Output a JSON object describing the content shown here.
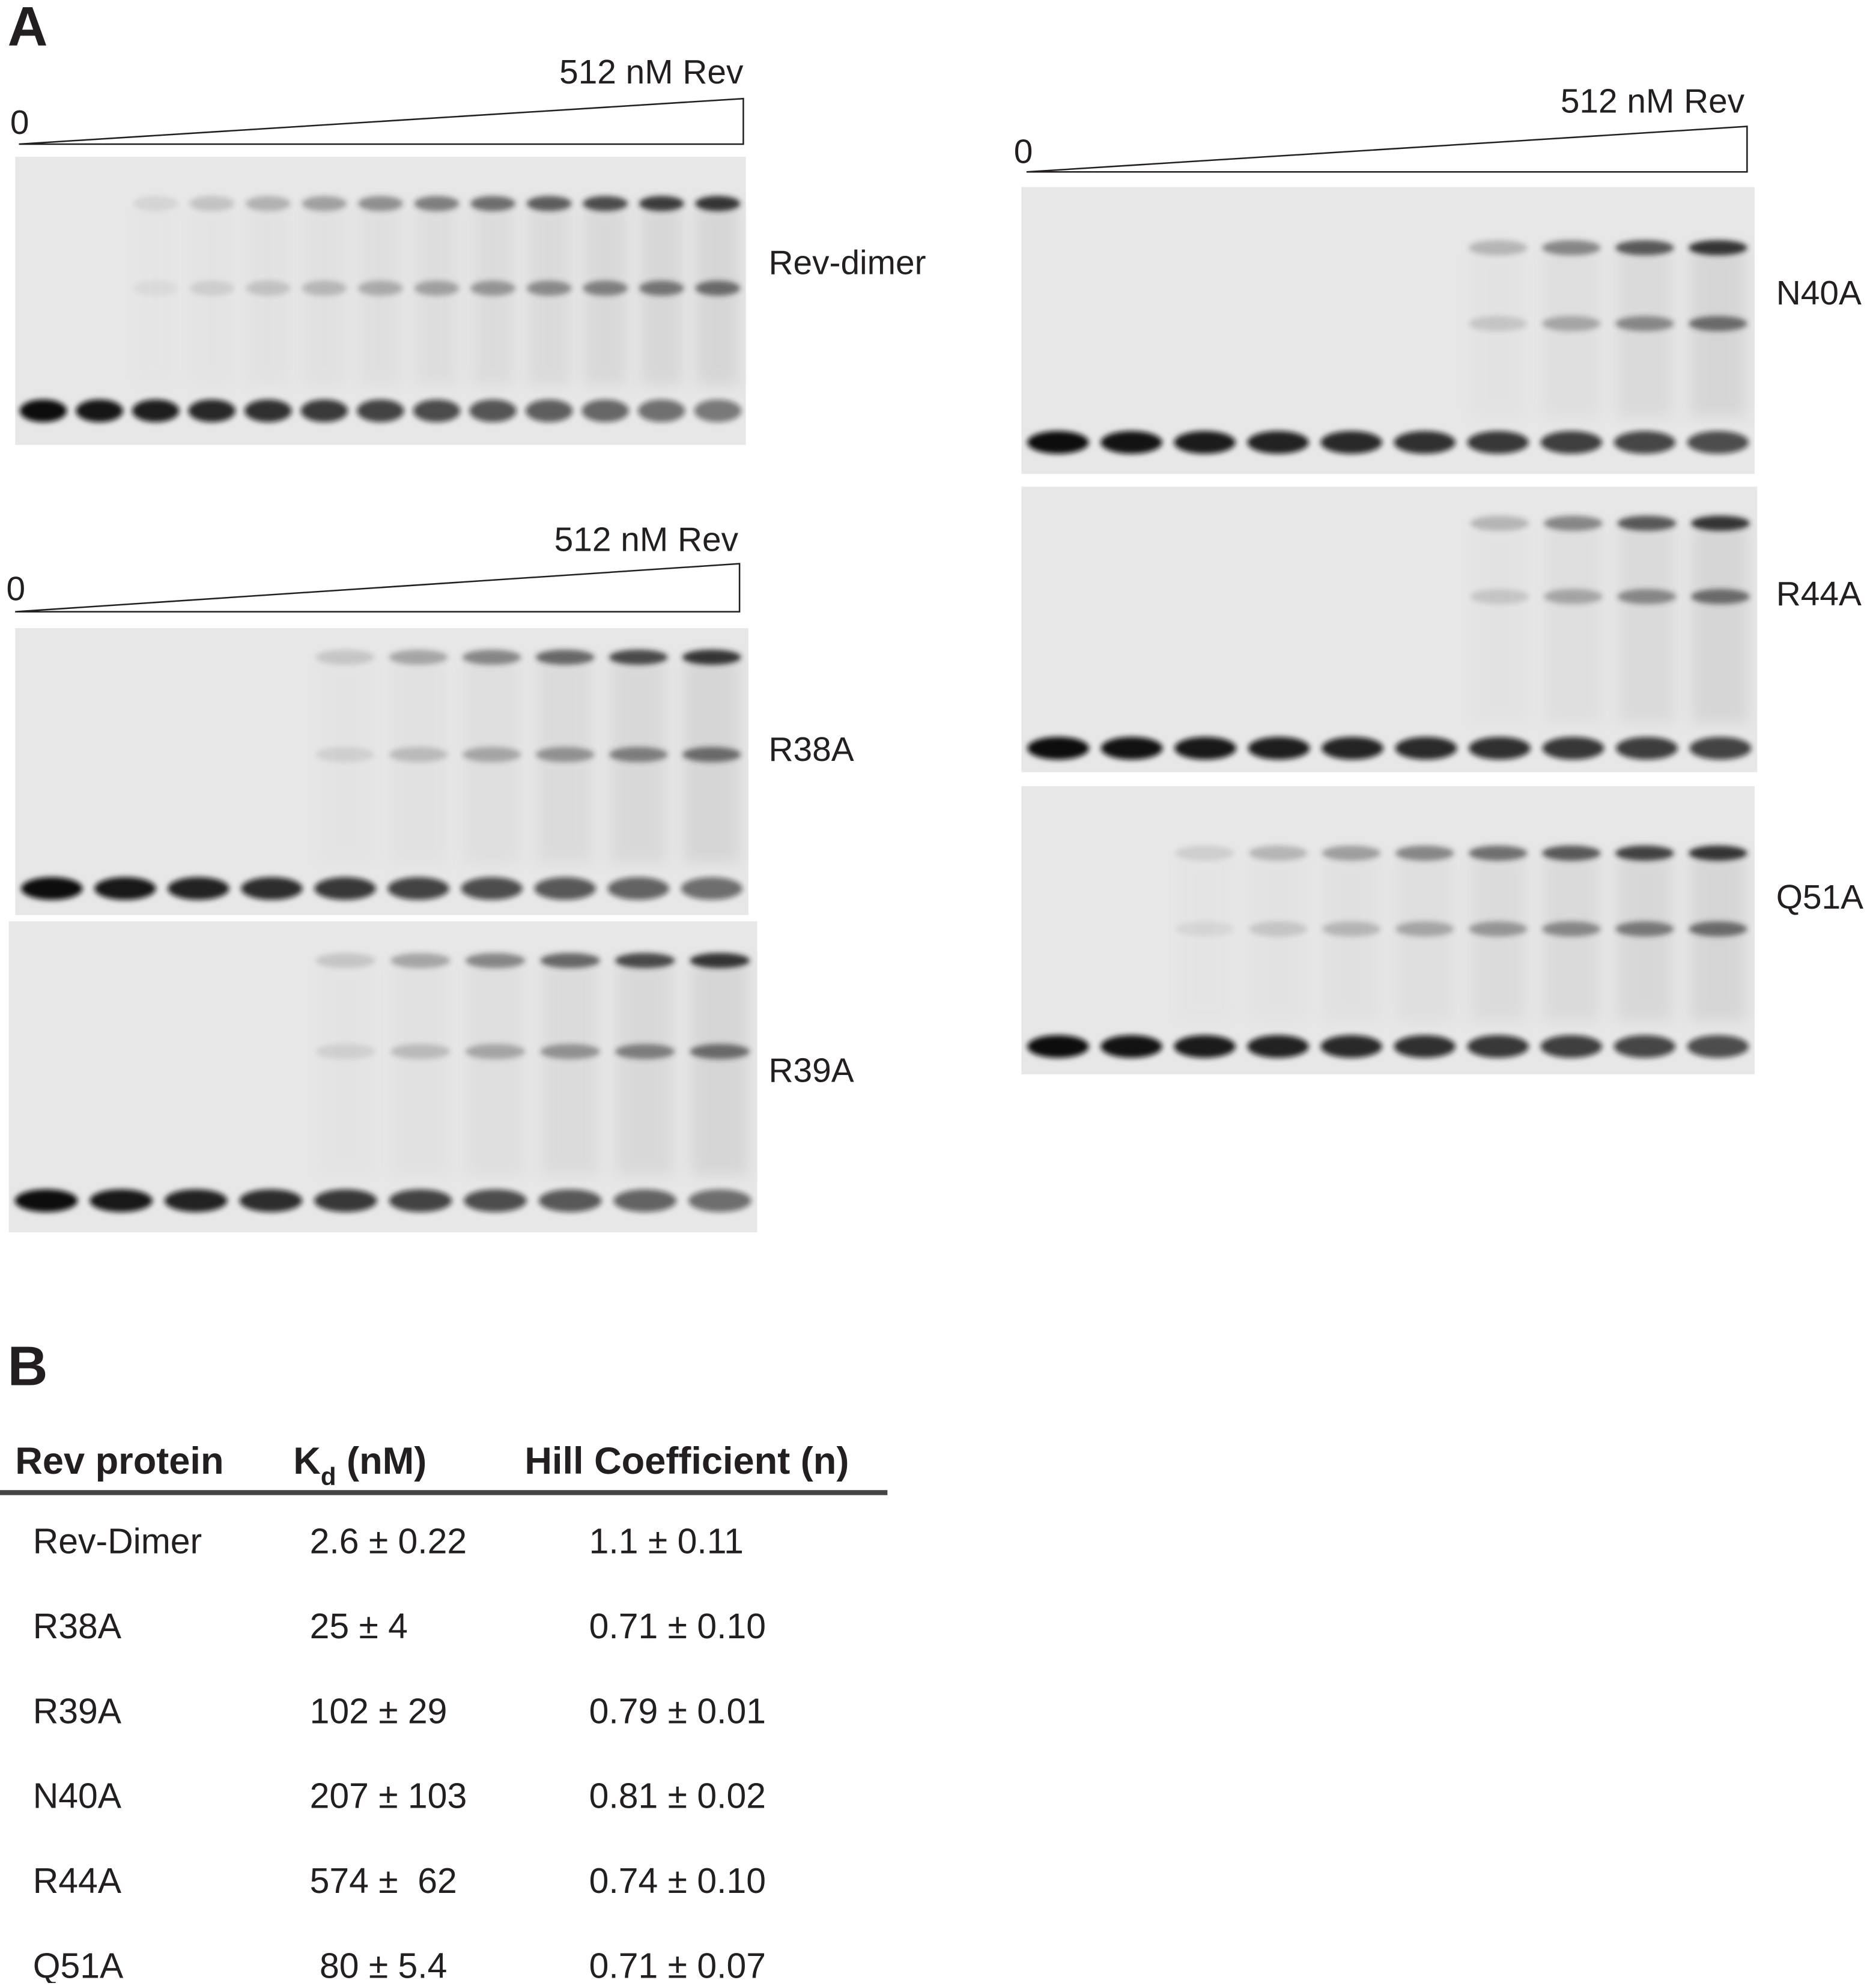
{
  "panel_a": {
    "label": "A",
    "groups": [
      {
        "start": "0",
        "end": "512 nM Rev",
        "gels": [
          "Rev-dimer"
        ]
      },
      {
        "start": "0",
        "end": "512 nM Rev",
        "gels": [
          "R38A",
          "R39A"
        ]
      },
      {
        "start": "0",
        "end": "512 nM Rev",
        "gels": [
          "N40A",
          "R44A",
          "Q51A"
        ]
      }
    ]
  },
  "panel_b": {
    "label": "B",
    "table": {
      "header": {
        "protein": "Rev protein",
        "kd": {
          "main": "K",
          "sub": "d",
          "rest": " (nM)"
        },
        "hill": "Hill Coefficient (n)"
      },
      "rows": [
        [
          "Rev-Dimer",
          "2.6 ± 0.22",
          "1.1 ± 0.11"
        ],
        [
          "R38A",
          "25 ± 4",
          "0.71 ± 0.10"
        ],
        [
          "R39A",
          "102 ± 29",
          "0.79 ± 0.01"
        ],
        [
          "N40A",
          "207 ± 103",
          "0.81 ± 0.02"
        ],
        [
          "R44A",
          "574 ±  62",
          "0.74 ± 0.10"
        ],
        [
          "Q51A",
          " 80 ± 5.4",
          "0.71 ± 0.07"
        ]
      ]
    }
  }
}
